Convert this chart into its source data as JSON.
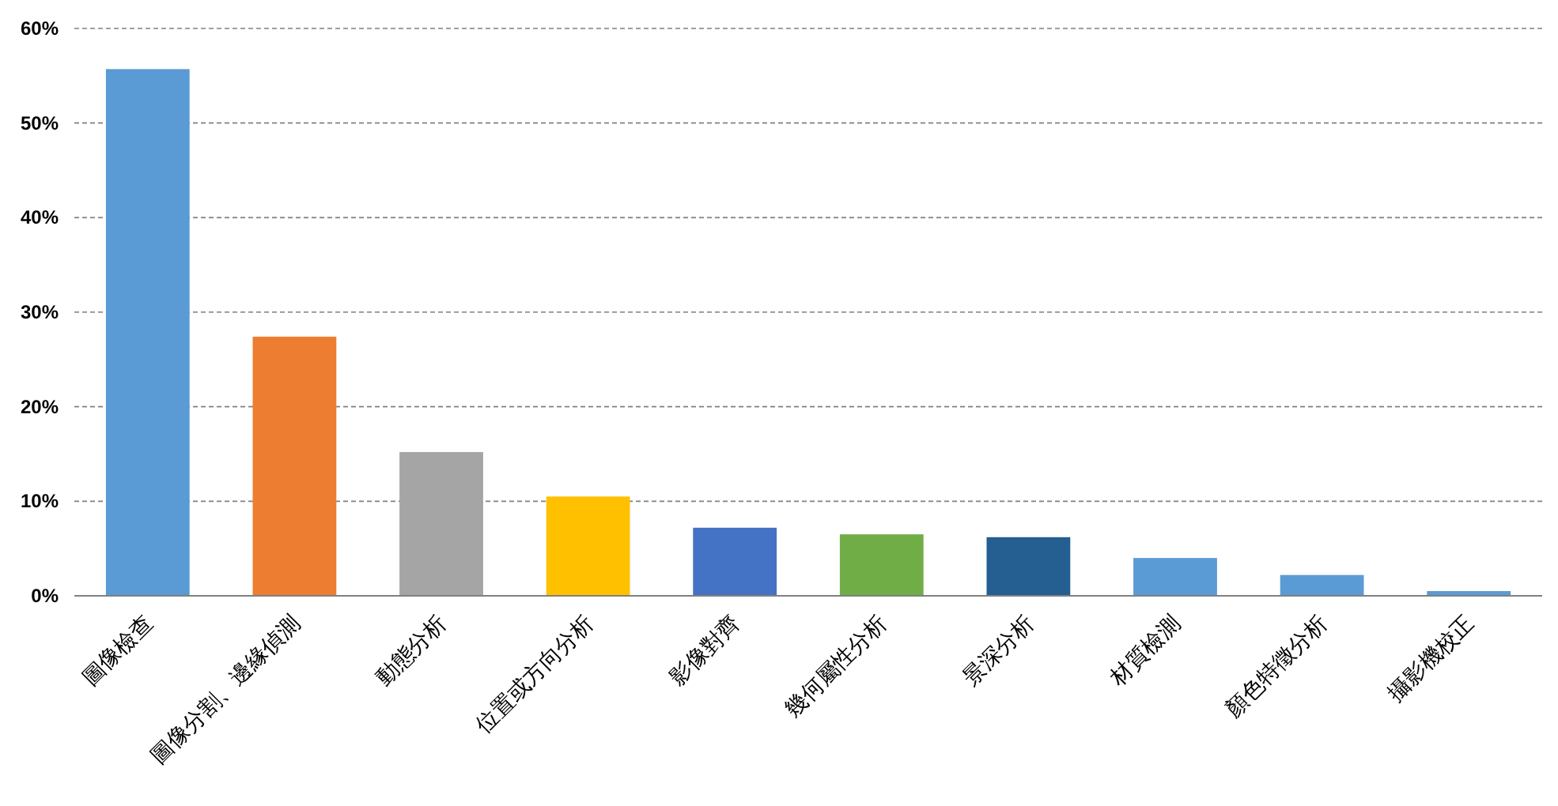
{
  "chart_data": {
    "type": "bar",
    "categories": [
      "圖像檢查",
      "圖像分割、邊緣偵測",
      "動態分析",
      "位置或方向分析",
      "影像對齊",
      "幾何屬性分析",
      "景深分析",
      "材質檢測",
      "顏色特徵分析",
      "攝影機校正"
    ],
    "values": [
      55.7,
      27.4,
      15.2,
      10.5,
      7.2,
      6.5,
      6.2,
      4.0,
      2.2,
      0.5
    ],
    "colors": [
      "#5b9bd5",
      "#ed7d31",
      "#a5a5a5",
      "#ffc000",
      "#4472c4",
      "#70ad47",
      "#255e91",
      "#5b9bd5",
      "#5b9bd5",
      "#5b9bd5"
    ],
    "ylim": [
      0,
      60
    ],
    "yticks": [
      {
        "value": 0,
        "label": "0%"
      },
      {
        "value": 10,
        "label": "10%"
      },
      {
        "value": 20,
        "label": "20%"
      },
      {
        "value": 30,
        "label": "30%"
      },
      {
        "value": 40,
        "label": "40%"
      },
      {
        "value": 50,
        "label": "50%"
      },
      {
        "value": 60,
        "label": "60%"
      }
    ],
    "grid": "y"
  }
}
